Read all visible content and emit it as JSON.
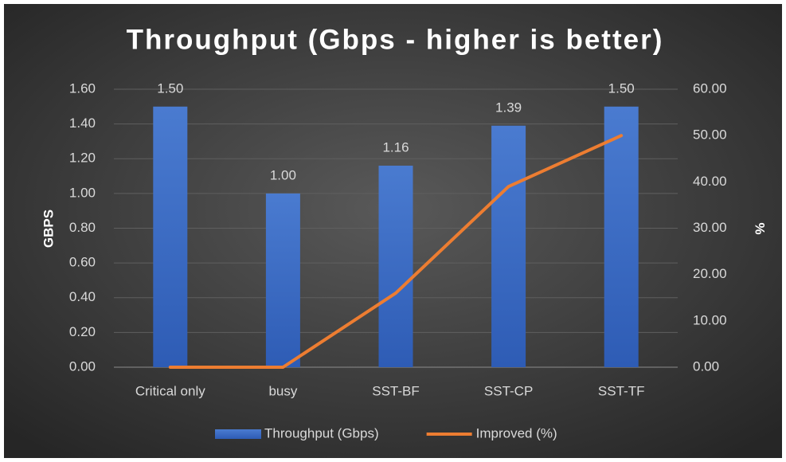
{
  "chart_data": {
    "type": "bar",
    "title": "Throughput (Gbps - higher is better)",
    "categories": [
      "Critical only",
      "busy",
      "SST-BF",
      "SST-CP",
      "SST-TF"
    ],
    "series": [
      {
        "name": "Throughput (Gbps)",
        "type": "bar",
        "color": "#4472c4",
        "values": [
          1.5,
          1,
          1.16,
          1.39,
          1.5
        ],
        "value_labels": [
          "1.50",
          "1.00",
          "1.16",
          "1.39",
          "1.50"
        ]
      },
      {
        "name": "Improved (%)",
        "type": "line",
        "axis": "y2",
        "color": "#ed7d31",
        "values": [
          0,
          0,
          16,
          39,
          50
        ]
      }
    ],
    "ylabel": "GBPS",
    "y2label": "%",
    "ylim": [
      0,
      1.6
    ],
    "yticks": [
      {
        "value": 0,
        "label": "0.00"
      },
      {
        "value": 0.2,
        "label": "0.20"
      },
      {
        "value": 0.4,
        "label": "0.40"
      },
      {
        "value": 0.6,
        "label": "0.60"
      },
      {
        "value": 0.8,
        "label": "0.80"
      },
      {
        "value": 1,
        "label": "1.00"
      },
      {
        "value": 1.2,
        "label": "1.20"
      },
      {
        "value": 1.4,
        "label": "1.40"
      },
      {
        "value": 1.6,
        "label": "1.60"
      }
    ],
    "y2lim": [
      0,
      60
    ],
    "y2ticks": [
      {
        "value": 0,
        "label": "0.00"
      },
      {
        "value": 10,
        "label": "10.00"
      },
      {
        "value": 20,
        "label": "20.00"
      },
      {
        "value": 30,
        "label": "30.00"
      },
      {
        "value": 40,
        "label": "40.00"
      },
      {
        "value": 50,
        "label": "50.00"
      },
      {
        "value": 60,
        "label": "60.00"
      }
    ],
    "grid": true,
    "legend": "bottom"
  }
}
